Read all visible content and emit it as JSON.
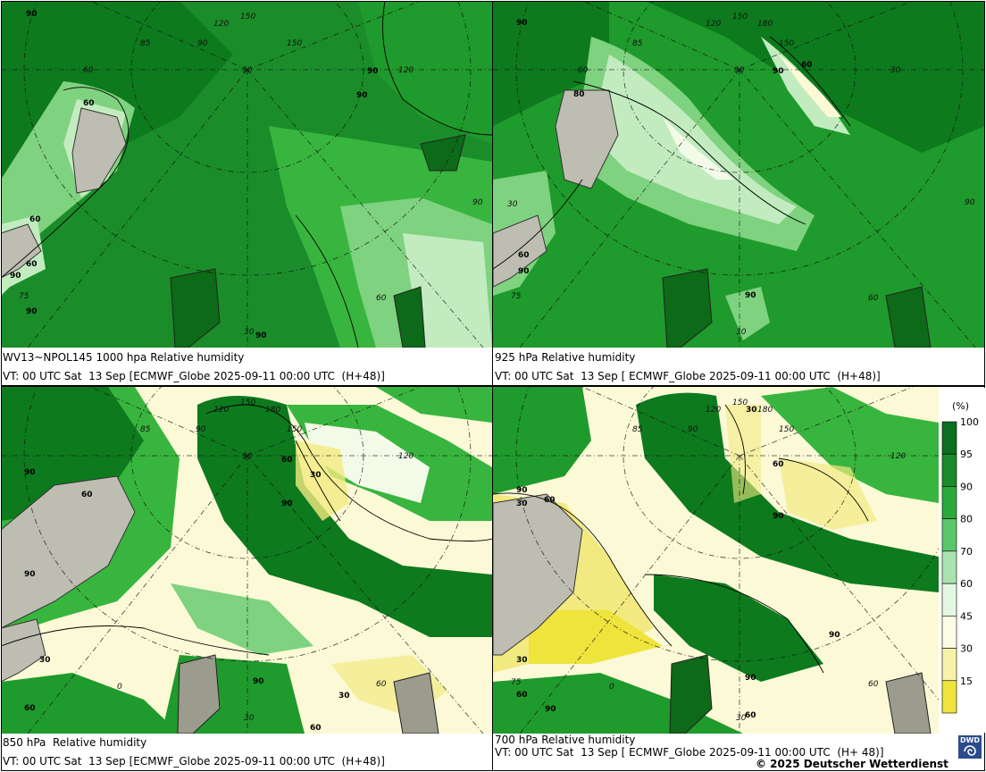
{
  "panels": [
    {
      "id": "p1000",
      "caption_line1": "WV13~NPOL145 1000 hpa Relative humidity",
      "caption_line2": "VT: 00 UTC Sat  13 Sep [ECMWF_Globe 2025-09-11 00:00 UTC  (H+48)]",
      "contour_labels": [
        "90",
        "60",
        "90",
        "90",
        "60",
        "90",
        "90",
        "60",
        "90"
      ],
      "grid_labels": [
        "150",
        "120",
        "150",
        "90",
        "85",
        "60",
        "75",
        "90",
        "120",
        "60",
        "30",
        "90"
      ]
    },
    {
      "id": "p925",
      "caption_line1": "925 hPa Relative humidity",
      "caption_line2": "VT: 00 UTC Sat  13 Sep [ ECMWF_Globe 2025-09-11 00:00 UTC  (H+48)]",
      "contour_labels": [
        "90",
        "80",
        "60",
        "90",
        "60",
        "90",
        "90"
      ],
      "grid_labels": [
        "150",
        "180",
        "120",
        "150",
        "85",
        "75",
        "60",
        "30",
        "60",
        "30",
        "90",
        "90",
        "30"
      ]
    },
    {
      "id": "p850",
      "caption_line1": "850 hPa  Relative humidity",
      "caption_line2": "VT: 00 UTC Sat  13 Sep [ECMWF_Globe 2025-09-11 00:00 UTC  (H+48)]",
      "contour_labels": [
        "90",
        "60",
        "90",
        "60",
        "30",
        "90",
        "30",
        "60",
        "30",
        "90",
        "60"
      ],
      "grid_labels": [
        "150",
        "120",
        "180",
        "150",
        "90",
        "85",
        "120",
        "90",
        "0",
        "30",
        "60"
      ]
    },
    {
      "id": "p700",
      "caption_line1": "700 hPa Relative humidity",
      "caption_line2": "VT: 00 UTC Sat  13 Sep [ ECMWF_Globe 2025-09-11 00:00 UTC  (H+ 48)]",
      "contour_labels": [
        "90",
        "30",
        "60",
        "30",
        "60",
        "90",
        "30",
        "60",
        "90",
        "90",
        "60",
        "90"
      ],
      "grid_labels": [
        "150",
        "180",
        "120",
        "150",
        "85",
        "90",
        "120",
        "75",
        "0",
        "30",
        "60"
      ]
    }
  ],
  "legend": {
    "unit": "(%)",
    "levels": [
      "100",
      "95",
      "90",
      "80",
      "70",
      "60",
      "45",
      "30",
      "15"
    ],
    "colors": [
      "#0b6e20",
      "#1a8a2a",
      "#2aa93a",
      "#5cc66a",
      "#a8e3b0",
      "#e4f6e4",
      "#fcfce6",
      "#f6f3a8",
      "#eee43c"
    ]
  },
  "colors": {
    "very_wet": "#0d7a1e",
    "wet": "#1f9a2c",
    "moist": "#38b53e",
    "mid": "#7fd27f",
    "light": "#c2ecc0",
    "pale": "#f3fbe8",
    "dry": "#fbf9d6",
    "very_dry": "#f2ea80",
    "land": "#bdbdb2"
  },
  "footer": {
    "credit": "© 2025 Deutscher Wetterdienst",
    "logo_text": "DWD"
  }
}
